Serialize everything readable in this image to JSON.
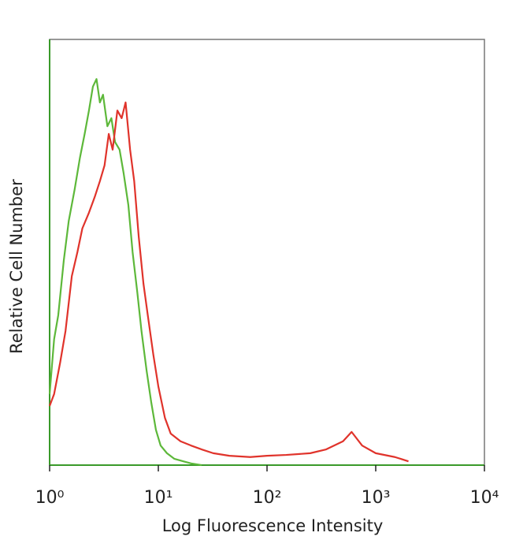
{
  "chart_data": {
    "type": "line",
    "x_label": "Log Fluorescence Intensity",
    "y_label": "Relative Cell Number",
    "xscale": "log",
    "xlim": [
      1,
      10000
    ],
    "xticks": [
      {
        "value": 1,
        "label": "10⁰"
      },
      {
        "value": 10,
        "label": "10¹"
      },
      {
        "value": 100,
        "label": "10²"
      },
      {
        "value": 1000,
        "label": "10³"
      },
      {
        "value": 10000,
        "label": "10⁴"
      }
    ],
    "ylim": [
      0,
      100
    ],
    "series": [
      {
        "color": "#5db83a",
        "x": [
          1.0,
          1.1,
          1.2,
          1.35,
          1.5,
          1.7,
          1.9,
          2.1,
          2.3,
          2.5,
          2.7,
          2.9,
          3.1,
          3.4,
          3.7,
          4.0,
          4.4,
          4.8,
          5.3,
          5.8,
          6.4,
          7.0,
          7.8,
          8.6,
          9.5,
          10.5,
          12,
          14,
          17,
          20,
          25
        ],
        "values": [
          16.7,
          29.6,
          35.2,
          48.1,
          57.4,
          64.8,
          72.2,
          77.8,
          83.3,
          88.9,
          90.7,
          85.2,
          87.0,
          79.6,
          81.5,
          75.9,
          74.1,
          68.5,
          61.1,
          50.0,
          40.7,
          31.5,
          22.2,
          14.8,
          8.3,
          4.6,
          2.8,
          1.5,
          0.9,
          0.4,
          0
        ]
      },
      {
        "color": "#e0332b",
        "x": [
          1.0,
          1.1,
          1.25,
          1.4,
          1.6,
          1.8,
          2.0,
          2.3,
          2.6,
          2.9,
          3.2,
          3.5,
          3.8,
          4.2,
          4.6,
          5.0,
          5.5,
          6.0,
          6.6,
          7.3,
          8.0,
          9.0,
          10,
          11.5,
          13,
          16,
          20,
          25,
          32,
          45,
          70,
          100,
          150,
          250,
          350,
          500,
          600,
          750,
          1000,
          1500,
          2000
        ],
        "values": [
          13.9,
          16.7,
          24.1,
          31.5,
          44.4,
          50.0,
          55.6,
          59.3,
          63.0,
          66.7,
          70.4,
          77.8,
          74.1,
          83.3,
          81.5,
          85.2,
          74.1,
          66.7,
          53.7,
          42.6,
          35.2,
          25.9,
          18.5,
          11.1,
          7.4,
          5.6,
          4.6,
          3.7,
          2.8,
          2.2,
          1.9,
          2.2,
          2.4,
          2.8,
          3.7,
          5.6,
          7.8,
          4.6,
          2.8,
          1.9,
          0.9
        ]
      }
    ]
  }
}
